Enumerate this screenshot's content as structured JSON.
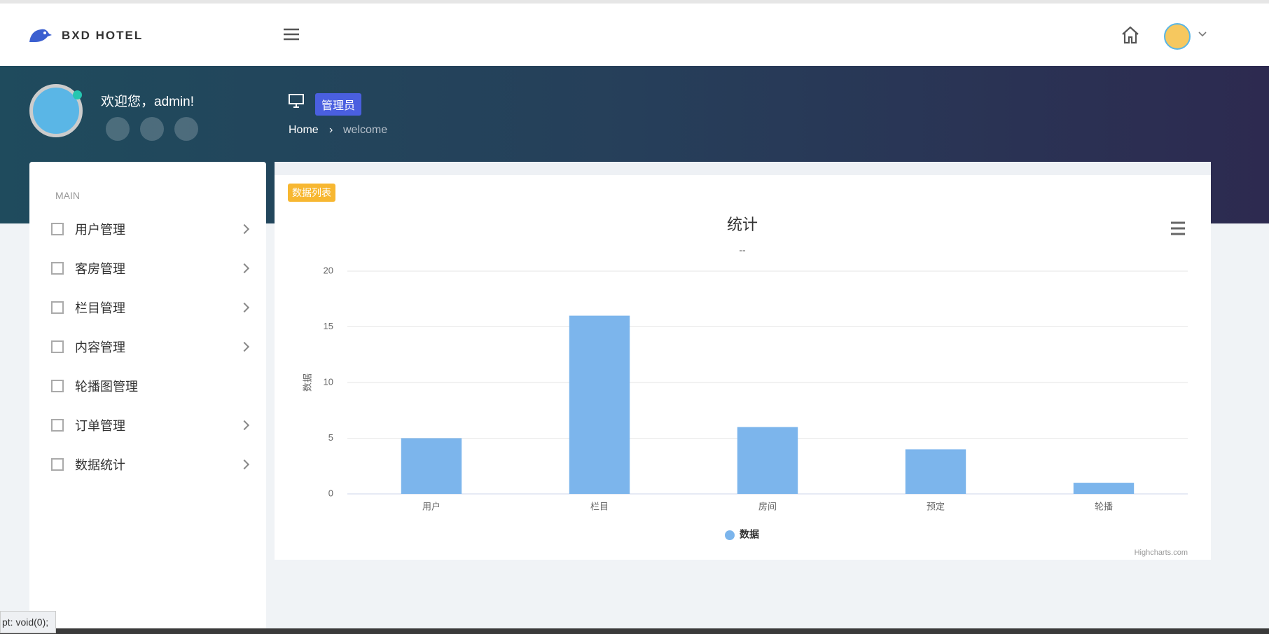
{
  "header": {
    "brand": "BXD HOTEL"
  },
  "profile": {
    "welcome": "欢迎您，admin!"
  },
  "page": {
    "role": "管理员",
    "breadcrumb": [
      "Home",
      "welcome"
    ]
  },
  "sidebar": {
    "section": "MAIN",
    "items": [
      "用户管理",
      "客房管理",
      "栏目管理",
      "内容管理",
      "轮播图管理",
      "订单管理",
      "数据统计"
    ]
  },
  "panel": {
    "tag": "数据列表"
  },
  "status_bar": "pt: void(0);",
  "chart_data": {
    "type": "bar",
    "title": "统计",
    "subtitle": "--",
    "y_axis_title": "数据",
    "categories": [
      "用户",
      "栏目",
      "房间",
      "预定",
      "轮播"
    ],
    "series": [
      {
        "name": "数据",
        "color": "#7cb5ec",
        "values": [
          5,
          16,
          6,
          4,
          1
        ]
      }
    ],
    "ylim": [
      0,
      20
    ],
    "yticks": [
      0,
      5,
      10,
      15,
      20
    ],
    "grid": true,
    "legend": "bottom",
    "credits": "Highcharts.com"
  }
}
